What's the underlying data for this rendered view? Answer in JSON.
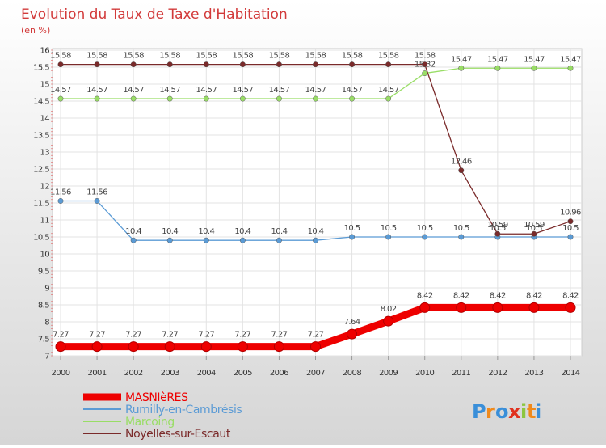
{
  "chart_data": {
    "type": "line",
    "title": "Evolution du Taux de Taxe d'Habitation",
    "subtitle": "(en %)",
    "xlabel": "",
    "ylabel": "",
    "x": [
      "2000",
      "2001",
      "2002",
      "2003",
      "2004",
      "2005",
      "2006",
      "2007",
      "2008",
      "2009",
      "2010",
      "2011",
      "2012",
      "2013",
      "2014"
    ],
    "ylim": [
      7,
      16
    ],
    "yticks": [
      "7",
      "7.5",
      "8",
      "8.5",
      "9",
      "9.5",
      "10",
      "10.5",
      "11",
      "11.5",
      "12",
      "12.5",
      "13",
      "13.5",
      "14",
      "14.5",
      "15",
      "15.5",
      "16"
    ],
    "grid": true,
    "legend_position": "bottom-left",
    "series": [
      {
        "name": "MASNIèRES",
        "color": "#ee0000",
        "values": [
          7.27,
          7.27,
          7.27,
          7.27,
          7.27,
          7.27,
          7.27,
          7.27,
          7.64,
          8.02,
          8.42,
          8.42,
          8.42,
          8.42,
          8.42
        ],
        "labels": [
          "7.27",
          "7.27",
          "7.27",
          "7.27",
          "7.27",
          "7.27",
          "7.27",
          "7.27",
          "7.64",
          "8.02",
          "8.42",
          "8.42",
          "8.42",
          "8.42",
          "8.42"
        ]
      },
      {
        "name": "Rumilly-en-Cambrésis",
        "color": "#5b9bd5",
        "values": [
          11.56,
          11.56,
          10.4,
          10.4,
          10.4,
          10.4,
          10.4,
          10.4,
          10.5,
          10.5,
          10.5,
          10.5,
          10.5,
          10.5,
          10.5
        ],
        "labels": [
          "11.56",
          "11.56",
          "10.4",
          "10.4",
          "10.4",
          "10.4",
          "10.4",
          "10.4",
          "10.5",
          "10.5",
          "10.5",
          "10.5",
          "10.5",
          "10.5",
          "10.5"
        ]
      },
      {
        "name": "Marcoing",
        "color": "#99dd66",
        "values": [
          14.57,
          14.57,
          14.57,
          14.57,
          14.57,
          14.57,
          14.57,
          14.57,
          14.57,
          14.57,
          15.32,
          15.47,
          15.47,
          15.47,
          15.47
        ],
        "labels": [
          "14.57",
          "14.57",
          "14.57",
          "14.57",
          "14.57",
          "14.57",
          "14.57",
          "14.57",
          "14.57",
          "14.57",
          "15.32",
          "15.47",
          "15.47",
          "15.47",
          "15.47"
        ]
      },
      {
        "name": "Noyelles-sur-Escaut",
        "color": "#7a2a2a",
        "values": [
          15.58,
          15.58,
          15.58,
          15.58,
          15.58,
          15.58,
          15.58,
          15.58,
          15.58,
          15.58,
          15.58,
          12.46,
          10.59,
          10.59,
          10.96
        ],
        "labels": [
          "15.58",
          "15.58",
          "15.58",
          "15.58",
          "15.58",
          "15.58",
          "15.58",
          "15.58",
          "15.58",
          "15.58",
          "15.58",
          "12.46",
          "10.59",
          "10.59",
          "10.96"
        ]
      }
    ]
  },
  "logo": {
    "text": "Proxiti",
    "colors": [
      "#3a8fd9",
      "#f08a1c",
      "#3a8fd9",
      "#e0311e",
      "#8cc63f",
      "#f08a1c",
      "#3a8fd9"
    ]
  }
}
